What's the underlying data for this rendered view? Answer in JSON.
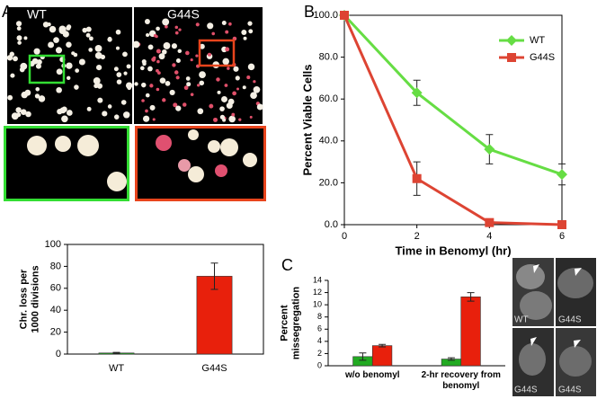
{
  "panels": {
    "A": {
      "label": "A",
      "image_labels": [
        "WT",
        "G44S"
      ]
    },
    "B": {
      "label": "B"
    },
    "C": {
      "label": "C",
      "image_labels": [
        "WT",
        "G44S",
        "G44S",
        "G44S"
      ]
    }
  },
  "chart_data": [
    {
      "type": "bar",
      "categories": [
        "WT",
        "G44S"
      ],
      "values": [
        1,
        71
      ],
      "errors": [
        0.5,
        12
      ],
      "colors": [
        "#22aa22",
        "#e8200c"
      ],
      "ylabel": [
        "Chr. loss per",
        "1000 divisions"
      ],
      "ylim": [
        0,
        100
      ],
      "yticks": [
        0,
        20,
        40,
        60,
        80,
        100
      ],
      "frame": true
    },
    {
      "type": "line",
      "x": [
        0,
        2,
        4,
        6
      ],
      "series": [
        {
          "name": "WT",
          "color": "#66dd44",
          "marker": "diamond",
          "values": [
            100,
            63,
            36,
            24
          ],
          "errors": [
            0,
            6,
            7,
            5
          ]
        },
        {
          "name": "G44S",
          "color": "#dd4433",
          "marker": "square",
          "values": [
            100,
            22,
            1,
            0
          ],
          "errors": [
            0,
            8,
            0.5,
            0
          ]
        }
      ],
      "xlabel": "Time in Benomyl (hr)",
      "ylabel": [
        "Percent Viable Cells"
      ],
      "xlim": [
        0,
        6
      ],
      "xticks": [
        0,
        2,
        4,
        6
      ],
      "ylim": [
        0,
        100
      ],
      "yticks": [
        {
          "value": 0,
          "label": "0.0"
        },
        {
          "value": 20,
          "label": "20.0"
        },
        {
          "value": 40,
          "label": "40.0"
        },
        {
          "value": 60,
          "label": "60.0"
        },
        {
          "value": 80,
          "label": "80.0"
        },
        {
          "value": 100,
          "label": "100.0"
        }
      ],
      "legend": "top-right",
      "frame": true
    },
    {
      "type": "bar",
      "categories": [
        "w/o benomyl",
        "2-hr recovery from benomyl"
      ],
      "series": [
        {
          "color": "#22aa22",
          "values": [
            1.5,
            1.1
          ],
          "errors": [
            0.6,
            0.2
          ]
        },
        {
          "color": "#e8200c",
          "values": [
            3.3,
            11.3
          ],
          "errors": [
            0.2,
            0.7
          ]
        }
      ],
      "ylabel": [
        "Percent",
        "missegregation"
      ],
      "ylim": [
        0,
        14
      ],
      "yticks": [
        0,
        2,
        4,
        6,
        8,
        10,
        12,
        14
      ],
      "frame": false
    }
  ]
}
